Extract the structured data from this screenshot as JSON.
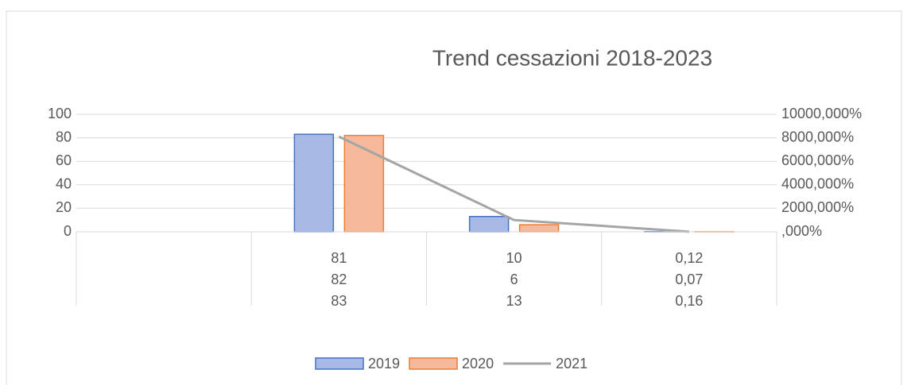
{
  "chart_data": {
    "type": "bar",
    "title": "Trend cessazioni 2018-2023",
    "categories": [
      null,
      [
        "81",
        "82",
        "83"
      ],
      [
        "10",
        "6",
        "13"
      ],
      [
        "0,12",
        "0,07",
        "0,16"
      ]
    ],
    "series": [
      {
        "name": "2019",
        "type": "bar",
        "color": "#a9b9e6",
        "stroke": "#4472c4",
        "values": [
          null,
          83,
          13,
          0.16
        ]
      },
      {
        "name": "2020",
        "type": "bar",
        "color": "#f7b99c",
        "stroke": "#ed7d31",
        "values": [
          null,
          82,
          6,
          0.07
        ]
      },
      {
        "name": "2021",
        "type": "line",
        "axis": "y2",
        "color": "#a5a5a5",
        "values": [
          null,
          8100,
          1000,
          12
        ]
      }
    ],
    "ylim": [
      0,
      100
    ],
    "yticks": [
      0,
      20,
      40,
      60,
      80,
      100
    ],
    "y2lim": [
      0,
      10000
    ],
    "y2ticks": [
      {
        "value": 0,
        "label": ",000%"
      },
      {
        "value": 2000,
        "label": "2000,000%"
      },
      {
        "value": 4000,
        "label": "4000,000%"
      },
      {
        "value": 6000,
        "label": "6000,000%"
      },
      {
        "value": 8000,
        "label": "8000,000%"
      },
      {
        "value": 10000,
        "label": "10000,000%"
      }
    ],
    "grid": true,
    "legend": "bottom"
  }
}
